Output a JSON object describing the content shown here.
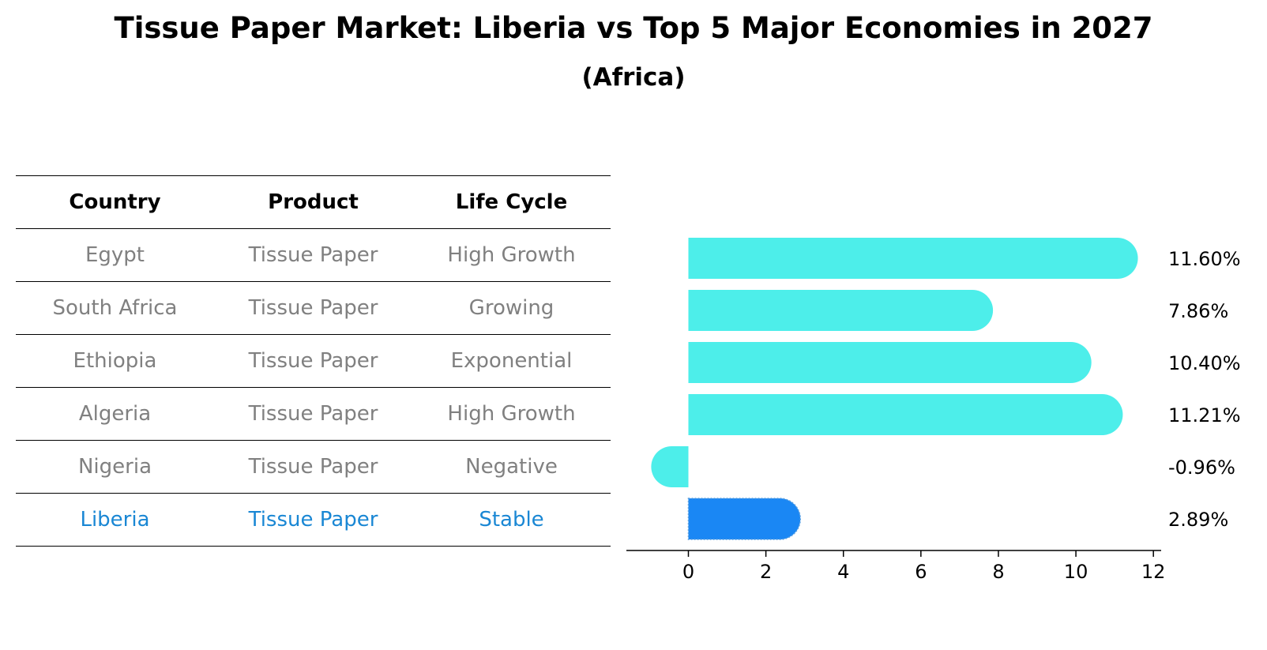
{
  "title": "Tissue Paper Market: Liberia vs Top 5 Major Economies in 2027",
  "subtitle": "(Africa)",
  "table": {
    "headers": [
      "Country",
      "Product",
      "Life Cycle"
    ],
    "rows": [
      {
        "country": "Egypt",
        "product": "Tissue Paper",
        "life_cycle": "High Growth"
      },
      {
        "country": "South Africa",
        "product": "Tissue Paper",
        "life_cycle": "Growing"
      },
      {
        "country": "Ethiopia",
        "product": "Tissue Paper",
        "life_cycle": "Exponential"
      },
      {
        "country": "Algeria",
        "product": "Tissue Paper",
        "life_cycle": "High Growth"
      },
      {
        "country": "Nigeria",
        "product": "Tissue Paper",
        "life_cycle": "Negative"
      },
      {
        "country": "Liberia",
        "product": "Tissue Paper",
        "life_cycle": "Stable"
      }
    ]
  },
  "colors": {
    "bar": "#4deeea",
    "highlight": "#1a87f4",
    "highlight_text": "#1a87d4",
    "muted_text": "#808080"
  },
  "chart_data": {
    "type": "bar",
    "orientation": "horizontal",
    "categories": [
      "Egypt",
      "South Africa",
      "Ethiopia",
      "Algeria",
      "Nigeria",
      "Liberia"
    ],
    "values": [
      11.6,
      7.86,
      10.4,
      11.21,
      -0.96,
      2.89
    ],
    "value_labels": [
      "11.60%",
      "7.86%",
      "10.40%",
      "11.21%",
      "-0.96%",
      "2.89%"
    ],
    "highlight": "Liberia",
    "xlim": [
      -1.6,
      12.2
    ],
    "xticks": [
      0,
      2,
      4,
      6,
      8,
      10,
      12
    ],
    "xlabel": "",
    "ylabel": ""
  }
}
